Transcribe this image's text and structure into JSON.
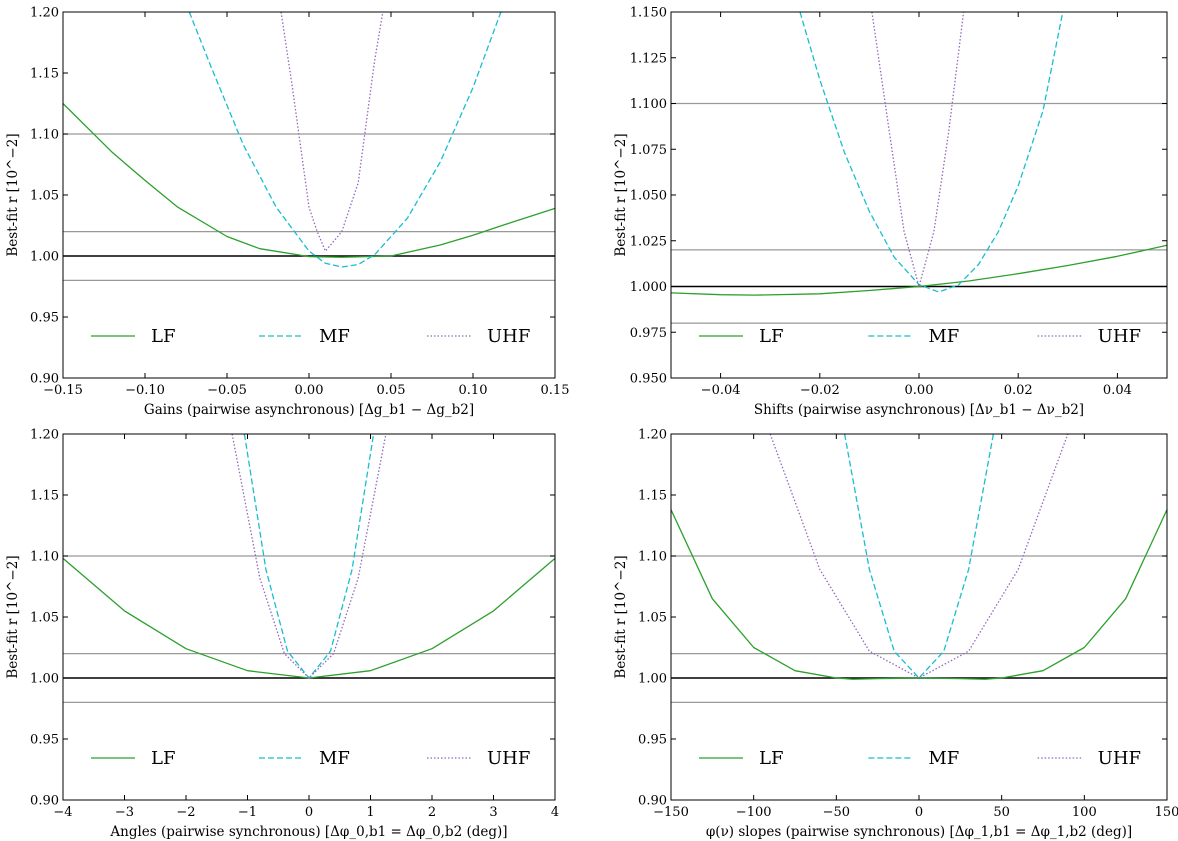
{
  "chart_data": [
    {
      "type": "line",
      "xlabel": "Gains (pairwise asynchronous) [Δg_b1 − Δg_b2]",
      "ylabel": "Best-fit r [10^−2]",
      "xlim": [
        -0.15,
        0.15
      ],
      "ylim": [
        0.9,
        1.2
      ],
      "xticks": [
        -0.15,
        -0.1,
        -0.05,
        0.0,
        0.05,
        0.1,
        0.15
      ],
      "xtick_labels": [
        "−0.15",
        "−0.10",
        "−0.05",
        "0.00",
        "0.05",
        "0.10",
        "0.15"
      ],
      "yticks": [
        0.9,
        0.95,
        1.0,
        1.05,
        1.1,
        1.15,
        1.2
      ],
      "ytick_labels": [
        "0.90",
        "0.95",
        "1.00",
        "1.05",
        "1.10",
        "1.15",
        "1.20"
      ],
      "hlines": [
        {
          "y": 1.0,
          "color": "#000000"
        },
        {
          "y": 1.1,
          "color": "#999999"
        },
        {
          "y": 1.02,
          "color": "#999999"
        },
        {
          "y": 0.98,
          "color": "#999999"
        }
      ],
      "legend": "bottom",
      "series": [
        {
          "name": "LF",
          "color": "#2ca02c",
          "dash": "solid",
          "x": [
            -0.15,
            -0.12,
            -0.1,
            -0.08,
            -0.05,
            -0.03,
            0.0,
            0.02,
            0.05,
            0.08,
            0.1,
            0.12,
            0.15
          ],
          "y": [
            1.125,
            1.085,
            1.062,
            1.04,
            1.016,
            1.006,
            0.9995,
            0.999,
            1.0,
            1.009,
            1.017,
            1.026,
            1.039
          ]
        },
        {
          "name": "MF",
          "color": "#17becf",
          "dash": "dashed",
          "x": [
            -0.073,
            -0.06,
            -0.04,
            -0.02,
            0.0,
            0.01,
            0.02,
            0.03,
            0.04,
            0.06,
            0.08,
            0.1,
            0.117
          ],
          "y": [
            1.2,
            1.156,
            1.091,
            1.04,
            1.004,
            0.994,
            0.991,
            0.993,
            1.001,
            1.031,
            1.077,
            1.138,
            1.2
          ]
        },
        {
          "name": "UHF",
          "color": "#9467bd",
          "dash": "dotted",
          "x": [
            -0.017,
            -0.01,
            0.0,
            0.005,
            0.01,
            0.02,
            0.03,
            0.04,
            0.045
          ],
          "y": [
            1.2,
            1.137,
            1.04,
            1.02,
            1.004,
            1.02,
            1.06,
            1.16,
            1.2
          ]
        }
      ]
    },
    {
      "type": "line",
      "xlabel": "Shifts (pairwise asynchronous) [Δν_b1 − Δν_b2]",
      "ylabel": "Best-fit r [10^−2]",
      "xlim": [
        -0.05,
        0.05
      ],
      "ylim": [
        0.95,
        1.15
      ],
      "xticks": [
        -0.04,
        -0.02,
        0.0,
        0.02,
        0.04
      ],
      "xtick_labels": [
        "−0.04",
        "−0.02",
        "0.00",
        "0.02",
        "0.04"
      ],
      "yticks": [
        0.95,
        0.975,
        1.0,
        1.025,
        1.05,
        1.075,
        1.1,
        1.125,
        1.15
      ],
      "ytick_labels": [
        "0.950",
        "0.975",
        "1.000",
        "1.025",
        "1.050",
        "1.075",
        "1.100",
        "1.125",
        "1.150"
      ],
      "hlines": [
        {
          "y": 1.0,
          "color": "#000000"
        },
        {
          "y": 1.1,
          "color": "#999999"
        },
        {
          "y": 1.02,
          "color": "#999999"
        },
        {
          "y": 0.98,
          "color": "#999999"
        }
      ],
      "legend": "bottom",
      "series": [
        {
          "name": "LF",
          "color": "#2ca02c",
          "dash": "solid",
          "x": [
            -0.05,
            -0.04,
            -0.033,
            -0.02,
            -0.01,
            0.0,
            0.01,
            0.02,
            0.03,
            0.04,
            0.05
          ],
          "y": [
            0.9965,
            0.9955,
            0.9953,
            0.996,
            0.9978,
            1.0,
            1.003,
            1.007,
            1.0115,
            1.0165,
            1.0225
          ]
        },
        {
          "name": "MF",
          "color": "#17becf",
          "dash": "dashed",
          "x": [
            -0.024,
            -0.02,
            -0.015,
            -0.01,
            -0.005,
            0.0,
            0.004,
            0.008,
            0.012,
            0.016,
            0.02,
            0.025,
            0.029
          ],
          "y": [
            1.15,
            1.113,
            1.073,
            1.041,
            1.016,
            1.001,
            0.997,
            1.001,
            1.012,
            1.03,
            1.055,
            1.096,
            1.15
          ]
        },
        {
          "name": "UHF",
          "color": "#9467bd",
          "dash": "dotted",
          "x": [
            -0.0095,
            -0.006,
            -0.003,
            0.0,
            0.003,
            0.006,
            0.009
          ],
          "y": [
            1.15,
            1.085,
            1.03,
            1.0,
            1.03,
            1.085,
            1.15
          ]
        }
      ]
    },
    {
      "type": "line",
      "xlabel": "Angles (pairwise synchronous) [Δφ_0,b1 = Δφ_0,b2 (deg)]",
      "ylabel": "Best-fit r [10^−2]",
      "xlim": [
        -4,
        4
      ],
      "ylim": [
        0.9,
        1.2
      ],
      "xticks": [
        -4,
        -3,
        -2,
        -1,
        0,
        1,
        2,
        3,
        4
      ],
      "xtick_labels": [
        "−4",
        "−3",
        "−2",
        "−1",
        "0",
        "1",
        "2",
        "3",
        "4"
      ],
      "yticks": [
        0.9,
        0.95,
        1.0,
        1.05,
        1.1,
        1.15,
        1.2
      ],
      "ytick_labels": [
        "0.90",
        "0.95",
        "1.00",
        "1.05",
        "1.10",
        "1.15",
        "1.20"
      ],
      "hlines": [
        {
          "y": 1.0,
          "color": "#000000"
        },
        {
          "y": 1.1,
          "color": "#999999"
        },
        {
          "y": 1.02,
          "color": "#999999"
        },
        {
          "y": 0.98,
          "color": "#999999"
        }
      ],
      "legend": "bottom",
      "series": [
        {
          "name": "LF",
          "color": "#2ca02c",
          "dash": "solid",
          "x": [
            -4,
            -3,
            -2,
            -1,
            0,
            1,
            2,
            3,
            4
          ],
          "y": [
            1.098,
            1.055,
            1.024,
            1.006,
            1.0,
            1.006,
            1.024,
            1.055,
            1.098
          ]
        },
        {
          "name": "MF",
          "color": "#17becf",
          "dash": "dashed",
          "x": [
            -1.05,
            -0.7,
            -0.35,
            0.0,
            0.35,
            0.7,
            1.05
          ],
          "y": [
            1.2,
            1.089,
            1.022,
            1.0,
            1.022,
            1.089,
            1.2
          ]
        },
        {
          "name": "UHF",
          "color": "#9467bd",
          "dash": "dotted",
          "x": [
            -1.25,
            -0.8,
            -0.4,
            0.0,
            0.4,
            0.8,
            1.25
          ],
          "y": [
            1.2,
            1.082,
            1.02,
            1.0,
            1.02,
            1.082,
            1.2
          ]
        }
      ]
    },
    {
      "type": "line",
      "xlabel": "φ(ν) slopes (pairwise synchronous) [Δφ_1,b1 = Δφ_1,b2 (deg)]",
      "ylabel": "Best-fit r [10^−2]",
      "xlim": [
        -150,
        150
      ],
      "ylim": [
        0.9,
        1.2
      ],
      "xticks": [
        -150,
        -100,
        -50,
        0,
        50,
        100,
        150
      ],
      "xtick_labels": [
        "−150",
        "−100",
        "−50",
        "0",
        "50",
        "100",
        "150"
      ],
      "yticks": [
        0.9,
        0.95,
        1.0,
        1.05,
        1.1,
        1.15,
        1.2
      ],
      "ytick_labels": [
        "0.90",
        "0.95",
        "1.00",
        "1.05",
        "1.10",
        "1.15",
        "1.20"
      ],
      "hlines": [
        {
          "y": 1.0,
          "color": "#000000"
        },
        {
          "y": 1.1,
          "color": "#999999"
        },
        {
          "y": 1.02,
          "color": "#999999"
        },
        {
          "y": 0.98,
          "color": "#999999"
        }
      ],
      "legend": "bottom",
      "series": [
        {
          "name": "LF",
          "color": "#2ca02c",
          "dash": "solid",
          "x": [
            -150,
            -125,
            -100,
            -75,
            -50,
            -40,
            -25,
            0,
            25,
            40,
            50,
            75,
            100,
            125,
            150
          ],
          "y": [
            1.138,
            1.065,
            1.025,
            1.006,
            1.0,
            0.999,
            0.9995,
            1.0,
            0.9995,
            0.999,
            1.0,
            1.006,
            1.025,
            1.065,
            1.138
          ]
        },
        {
          "name": "MF",
          "color": "#17becf",
          "dash": "dashed",
          "x": [
            -45,
            -30,
            -15,
            0,
            15,
            30,
            45
          ],
          "y": [
            1.2,
            1.089,
            1.022,
            1.0,
            1.022,
            1.089,
            1.2
          ]
        },
        {
          "name": "UHF",
          "color": "#9467bd",
          "dash": "dotted",
          "x": [
            -90,
            -60,
            -30,
            0,
            30,
            60,
            90
          ],
          "y": [
            1.2,
            1.089,
            1.022,
            1.0,
            1.022,
            1.089,
            1.2
          ]
        }
      ]
    }
  ]
}
